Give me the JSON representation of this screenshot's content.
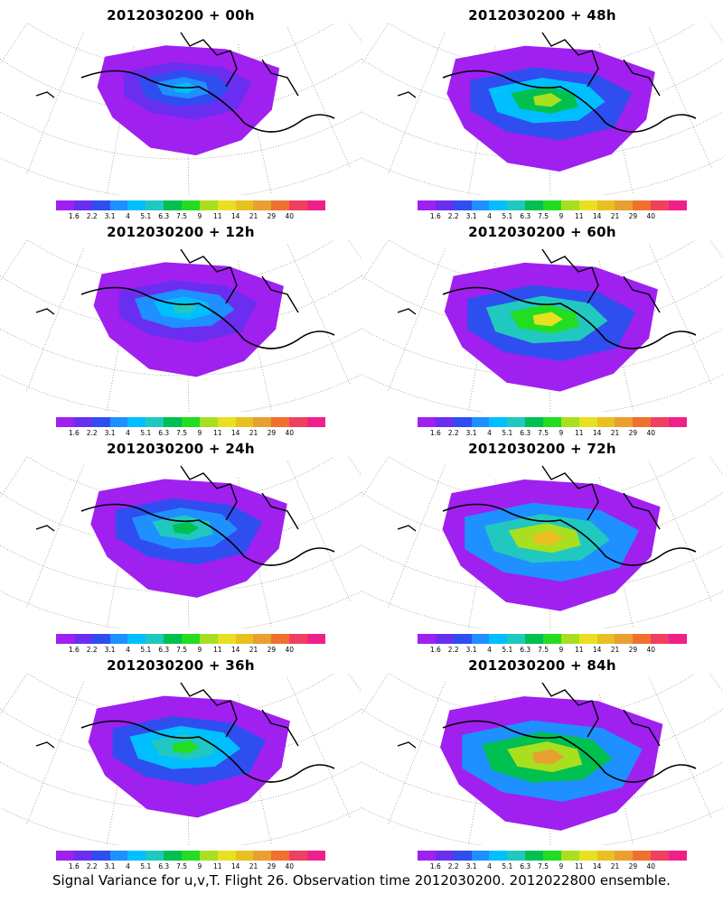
{
  "panels": [
    {
      "title": "2012030200 + 00h",
      "lead": "00h",
      "intensity": 0.3
    },
    {
      "title": "2012030200 + 48h",
      "lead": "48h",
      "intensity": 0.7
    },
    {
      "title": "2012030200 + 12h",
      "lead": "12h",
      "intensity": 0.42
    },
    {
      "title": "2012030200 + 60h",
      "lead": "60h",
      "intensity": 0.78
    },
    {
      "title": "2012030200 + 24h",
      "lead": "24h",
      "intensity": 0.52
    },
    {
      "title": "2012030200 + 72h",
      "lead": "72h",
      "intensity": 0.85
    },
    {
      "title": "2012030200 + 36h",
      "lead": "36h",
      "intensity": 0.6
    },
    {
      "title": "2012030200 + 84h",
      "lead": "84h",
      "intensity": 0.92
    }
  ],
  "colorbar": {
    "labels": [
      "1.6",
      "2.2",
      "3.1",
      "4",
      "5.1",
      "6.3",
      "7.5",
      "9",
      "11",
      "14",
      "21",
      "29",
      "40"
    ],
    "colors": [
      "#a020f0",
      "#6a2ef0",
      "#2f4ef0",
      "#1e90ff",
      "#00bfff",
      "#20c8c0",
      "#00c050",
      "#22dd22",
      "#a8e020",
      "#e8e020",
      "#e8c020",
      "#e8a030",
      "#f07030",
      "#f04060",
      "#f0208a"
    ]
  },
  "footer": "Signal Variance for u,v,T. Flight 26. Observation time 2012030200. 2012022800 ensemble."
}
